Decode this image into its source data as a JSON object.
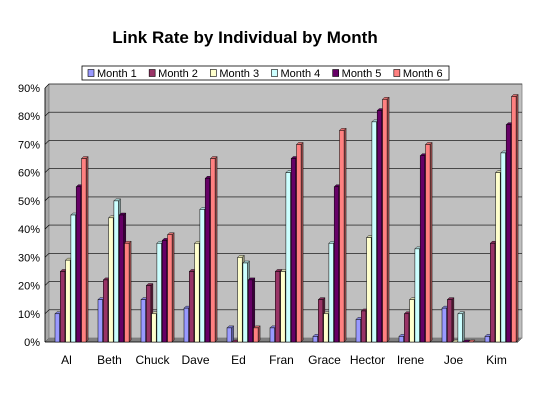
{
  "chart_data": {
    "type": "bar",
    "title": "Link Rate by Individual by Month",
    "xlabel": "",
    "ylabel": "",
    "ylim": [
      0,
      0.9
    ],
    "y_ticks": [
      "0%",
      "10%",
      "20%",
      "30%",
      "40%",
      "50%",
      "60%",
      "70%",
      "80%",
      "90%"
    ],
    "grid": true,
    "legend_position": "top",
    "categories": [
      "Al",
      "Beth",
      "Chuck",
      "Dave",
      "Ed",
      "Fran",
      "Grace",
      "Hector",
      "Irene",
      "Joe",
      "Kim"
    ],
    "series": [
      {
        "name": "Month 1",
        "color": "#9999ff",
        "values": [
          0.1,
          0.15,
          0.15,
          0.12,
          0.05,
          0.05,
          0.02,
          0.08,
          0.02,
          0.12,
          0.02
        ]
      },
      {
        "name": "Month 2",
        "color": "#993366",
        "values": [
          0.25,
          0.22,
          0.2,
          0.25,
          0.0,
          0.25,
          0.15,
          0.11,
          0.1,
          0.15,
          0.35
        ]
      },
      {
        "name": "Month 3",
        "color": "#ffffcc",
        "values": [
          0.29,
          0.44,
          0.1,
          0.35,
          0.3,
          0.25,
          0.1,
          0.37,
          0.15,
          0.0,
          0.6
        ]
      },
      {
        "name": "Month 4",
        "color": "#ccffff",
        "values": [
          0.45,
          0.5,
          0.35,
          0.47,
          0.28,
          0.6,
          0.35,
          0.78,
          0.33,
          0.1,
          0.67
        ]
      },
      {
        "name": "Month 5",
        "color": "#660066",
        "values": [
          0.55,
          0.45,
          0.36,
          0.58,
          0.22,
          0.65,
          0.55,
          0.82,
          0.66,
          0.0,
          0.77
        ]
      },
      {
        "name": "Month 6",
        "color": "#ff8080",
        "values": [
          0.65,
          0.35,
          0.38,
          0.65,
          0.05,
          0.7,
          0.75,
          0.86,
          0.7,
          0.0,
          0.87
        ]
      }
    ]
  }
}
